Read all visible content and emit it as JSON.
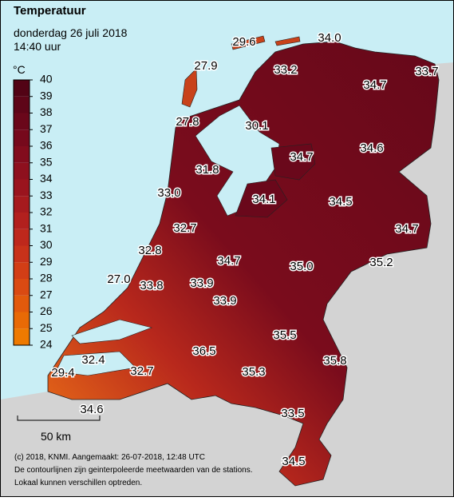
{
  "header": {
    "title": "Temperatuur",
    "date": "donderdag 26 juli 2018",
    "time": "14:40 uur"
  },
  "legend": {
    "unit": "°C",
    "ticks": [
      24,
      25,
      26,
      27,
      28,
      29,
      30,
      31,
      32,
      33,
      34,
      35,
      36,
      37,
      38,
      39,
      40
    ],
    "colors": [
      "#ee7a00",
      "#e86a06",
      "#e25a0c",
      "#da4a12",
      "#d23e16",
      "#c8321a",
      "#be281c",
      "#b2201e",
      "#a61a1e",
      "#9a141e",
      "#8e101e",
      "#820c1d",
      "#76091c",
      "#6a071a",
      "#5e0518",
      "#520315"
    ]
  },
  "stations": [
    "29.6",
    "34.0",
    "27.9",
    "33.2",
    "34.7",
    "33.7",
    "27.8",
    "30.1",
    "34.7",
    "34.6",
    "31.8",
    "33.0",
    "34.1",
    "34.5",
    "32.7",
    "34.7",
    "32.8",
    "34.7",
    "35.0",
    "35.2",
    "27.0",
    "33.8",
    "33.9",
    "33.9",
    "35.5",
    "36.5",
    "32.4",
    "35.8",
    "35.3",
    "32.7",
    "29.4",
    "34.6",
    "33.5",
    "34.5"
  ],
  "scale": "50 km",
  "footer": [
    "(c) 2018, KNMI. Aangemaakt: 26-07-2018, 12:48 UTC",
    "De contourlijnen zijn geinterpoleerde meetwaarden van de stations.",
    "Lokaal kunnen verschillen optreden."
  ]
}
